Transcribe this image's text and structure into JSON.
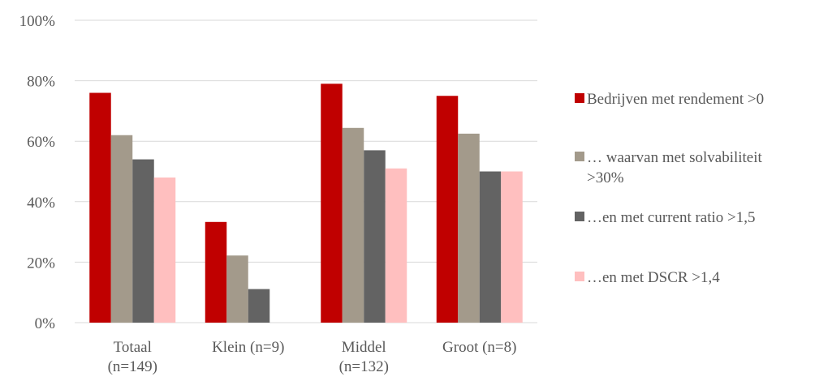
{
  "chart_data": {
    "type": "bar",
    "categories": [
      [
        "Totaal",
        "(n=149)"
      ],
      [
        "Klein (n=9)"
      ],
      [
        "Middel",
        "(n=132)"
      ],
      [
        "Groot (n=8)"
      ]
    ],
    "series": [
      {
        "name": "Bedrijven met rendement >0",
        "color": "#c00000",
        "values": [
          76,
          33.3,
          79,
          75
        ]
      },
      {
        "name": "… waarvan met solvabiliteit >30%",
        "legend_lines": [
          "… waarvan met solvabiliteit",
          ">30%"
        ],
        "color": "#a39a8b",
        "values": [
          62,
          22.2,
          64.4,
          62.5
        ]
      },
      {
        "name": "…en met current ratio >1,5",
        "color": "#636363",
        "values": [
          54,
          11.1,
          57,
          50
        ]
      },
      {
        "name": "…en met DSCR >1,4",
        "color": "#ffbfbf",
        "values": [
          48,
          0,
          51,
          50
        ]
      }
    ],
    "ylim": [
      0,
      100
    ],
    "yticks": [
      "0%",
      "20%",
      "40%",
      "60%",
      "80%",
      "100%"
    ],
    "ytick_values": [
      0,
      20,
      40,
      60,
      80,
      100
    ],
    "grid": true,
    "legend_position": "right",
    "gridline_color": "#d9d9d9"
  }
}
